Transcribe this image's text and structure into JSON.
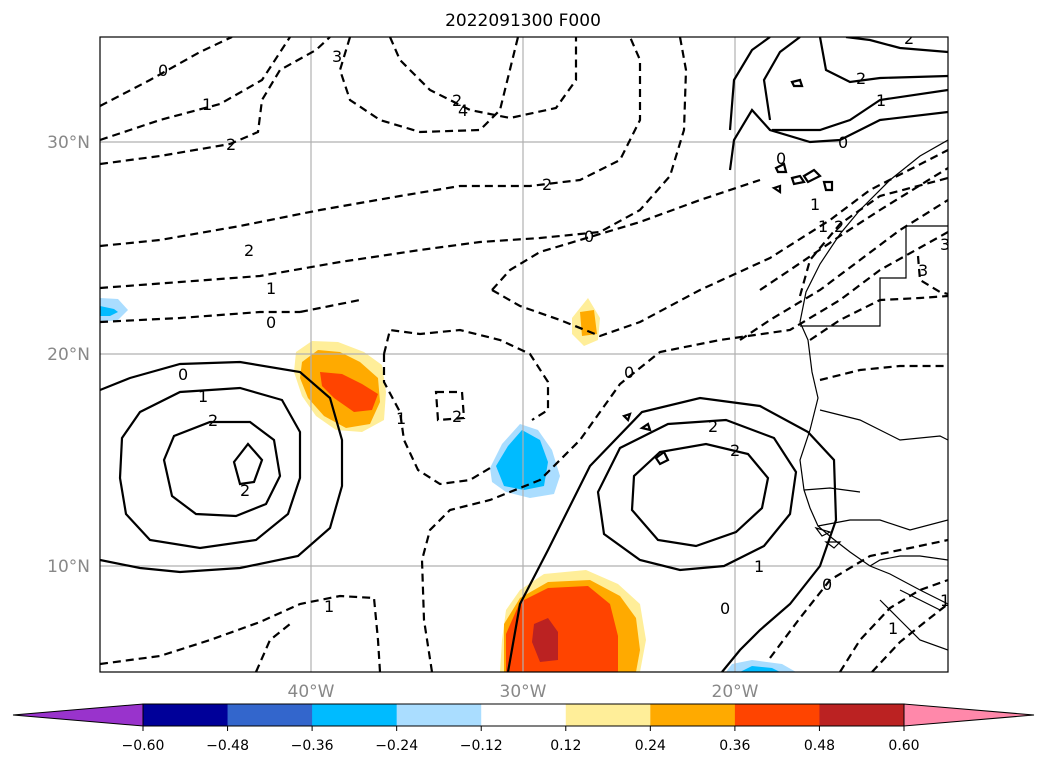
{
  "title": "2022091300 F000",
  "lat_labels": [
    "30°N",
    "20°N",
    "10°N"
  ],
  "lon_labels": [
    "40°W",
    "30°W",
    "20°W"
  ],
  "colorbar": {
    "ticks": [
      "−0.60",
      "−0.48",
      "−0.36",
      "−0.24",
      "−0.12",
      "0.12",
      "0.24",
      "0.36",
      "0.48",
      "0.60"
    ],
    "colors": [
      "#9933cc",
      "#000099",
      "#3366cc",
      "#00bbff",
      "#aaddff",
      "#ffffff",
      "#ffee99",
      "#ffaa00",
      "#ff4400",
      "#bb2222",
      "#ff88aa"
    ]
  },
  "contour_labels": [
    "0",
    "1",
    "2",
    "3",
    "4",
    "2",
    "2",
    "2",
    "1",
    "0",
    "2",
    "0",
    "2",
    "1",
    "0",
    "0",
    "1",
    "2",
    "2",
    "2",
    "1",
    "0",
    "1",
    "0",
    "1",
    "3",
    "0",
    "1",
    "2",
    "2",
    "1",
    "1",
    "0",
    "1",
    "2",
    "3"
  ],
  "shading_colors": {
    "light_yellow": "#ffee99",
    "orange": "#ffaa00",
    "red_orange": "#ff4400",
    "dark_red": "#bb2222",
    "light_blue": "#aaddff",
    "cyan": "#00bbff"
  }
}
